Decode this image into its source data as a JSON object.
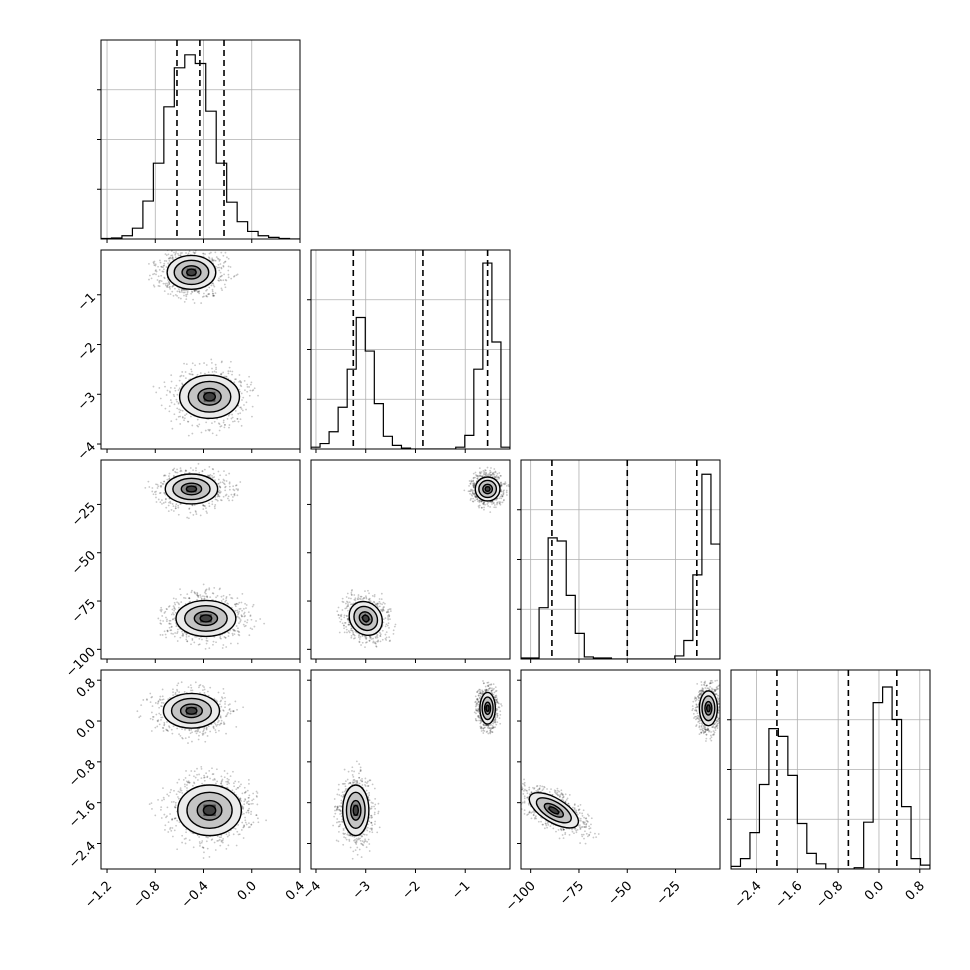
{
  "chart_data": {
    "type": "corner",
    "parameters": [
      {
        "ticks": [
          "-1.2",
          "-0.8",
          "-0.4",
          "0.0",
          "0.4"
        ],
        "tick_values": [
          -1.2,
          -0.8,
          -0.4,
          0.0,
          0.4
        ],
        "range": [
          -1.25,
          0.4
        ],
        "quantiles": [
          -0.62,
          -0.43,
          -0.23
        ]
      },
      {
        "ticks": [
          "-4",
          "-3",
          "-2",
          "-1"
        ],
        "tick_values": [
          -4,
          -3,
          -2,
          -1
        ],
        "range": [
          -4.1,
          -0.1
        ],
        "quantiles": [
          -3.25,
          -1.85,
          -0.55
        ]
      },
      {
        "ticks": [
          "-100",
          "-75",
          "-50",
          "-25"
        ],
        "tick_values": [
          -100,
          -75,
          -50,
          -25
        ],
        "range": [
          -105,
          -2
        ],
        "quantiles": [
          -89,
          -50,
          -14
        ]
      },
      {
        "ticks": [
          "-2.4",
          "-1.6",
          "-0.8",
          "0.0",
          "0.8"
        ],
        "tick_values": [
          -2.4,
          -1.6,
          -0.8,
          0.0,
          0.8
        ],
        "range": [
          -2.9,
          1.0
        ],
        "quantiles": [
          -2.0,
          -0.6,
          0.35
        ]
      }
    ],
    "histograms": [
      {
        "counts": [
          0.5,
          1,
          3,
          10,
          35,
          70,
          122,
          158,
          170,
          162,
          118,
          70,
          34,
          16,
          7,
          3,
          1.5,
          0.5,
          0
        ]
      },
      {
        "counts": [
          2,
          6,
          19,
          46,
          88,
          145,
          108,
          50,
          14,
          4,
          1,
          0,
          0,
          0,
          0,
          0,
          2,
          15,
          88,
          205,
          118,
          2
        ]
      },
      {
        "counts": [
          1,
          1,
          50,
          118,
          115,
          62,
          25,
          2,
          1,
          1,
          0,
          0,
          0,
          0,
          0,
          0,
          0,
          3,
          18,
          82,
          180,
          112
        ]
      },
      {
        "counts": [
          2,
          8,
          28,
          65,
          108,
          102,
          72,
          35,
          12,
          4,
          0,
          0,
          0,
          1,
          36,
          128,
          140,
          115,
          48,
          8,
          3
        ]
      }
    ],
    "ymax": [
      180,
      215,
      190,
      150
    ],
    "modes": [
      [
        [
          -0.5,
          -0.55,
          0.13,
          0.22,
          0.58
        ],
        [
          -0.35,
          -3.05,
          0.16,
          0.28,
          0.42
        ]
      ],
      [
        [
          -0.5,
          -17,
          0.14,
          5,
          0.42
        ],
        [
          -0.38,
          -84,
          0.16,
          6,
          0.58
        ]
      ],
      [
        [
          -0.55,
          -17,
          0.16,
          4,
          0.5
        ],
        [
          -3.0,
          -84,
          0.2,
          6,
          0.5,
          0.75
        ]
      ],
      [
        [
          -0.5,
          0.2,
          0.15,
          0.22,
          0.42
        ],
        [
          -0.35,
          -1.75,
          0.17,
          0.32,
          0.58
        ]
      ],
      [
        [
          -3.2,
          -1.75,
          0.17,
          0.32,
          0.5
        ],
        [
          -0.55,
          0.25,
          0.1,
          0.2,
          0.5
        ]
      ],
      [
        [
          -88,
          -1.75,
          4,
          0.35,
          0.5,
          0.72
        ],
        [
          -8,
          0.25,
          3,
          0.22,
          0.5
        ]
      ]
    ],
    "grid": true,
    "legend": "none"
  }
}
